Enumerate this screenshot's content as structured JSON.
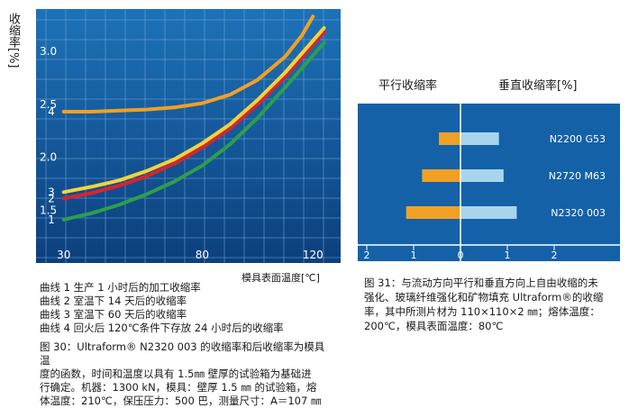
{
  "chart_data": [
    {
      "type": "line",
      "ylabel": "收缩率[%]",
      "xlabel": "模具表面温度[℃]",
      "x_ticks": [
        "30",
        "80",
        "120"
      ],
      "y_ticks": [
        "1.5",
        "2.0",
        "2.5",
        "3.0"
      ],
      "xlim": [
        20,
        130
      ],
      "ylim": [
        1.0,
        3.4
      ],
      "grid": true,
      "series": [
        {
          "name": "1",
          "color": "#2e9e4a",
          "x": [
            30,
            40,
            50,
            60,
            70,
            80,
            90,
            100,
            110,
            120,
            124
          ],
          "y": [
            1.41,
            1.47,
            1.55,
            1.65,
            1.77,
            1.92,
            2.12,
            2.37,
            2.66,
            2.96,
            3.08
          ]
        },
        {
          "name": "2",
          "color": "#d8242e",
          "x": [
            30,
            40,
            50,
            60,
            70,
            80,
            90,
            100,
            110,
            120,
            124
          ],
          "y": [
            1.61,
            1.66,
            1.73,
            1.82,
            1.94,
            2.09,
            2.27,
            2.5,
            2.76,
            3.06,
            3.18
          ]
        },
        {
          "name": "3",
          "color": "#f1d33c",
          "x": [
            30,
            40,
            50,
            60,
            70,
            80,
            90,
            100,
            110,
            120,
            124
          ],
          "y": [
            1.67,
            1.72,
            1.78,
            1.87,
            1.98,
            2.13,
            2.31,
            2.54,
            2.8,
            3.1,
            3.22
          ]
        },
        {
          "name": "4",
          "color": "#f0a024",
          "x": [
            30,
            40,
            50,
            60,
            70,
            80,
            90,
            100,
            110,
            116,
            120
          ],
          "y": [
            2.43,
            2.43,
            2.44,
            2.45,
            2.47,
            2.51,
            2.59,
            2.73,
            2.95,
            3.15,
            3.33
          ]
        }
      ]
    },
    {
      "type": "bar",
      "orientation": "horizontal",
      "left_header": "平行收缩率",
      "right_header": "垂直收缩率[%]",
      "x_ticks": [
        "2",
        "1",
        "0",
        "1",
        "2"
      ],
      "categories": [
        "N2200 G53",
        "N2720 M63",
        "N2320 003"
      ],
      "series": [
        {
          "name": "平行收缩率",
          "color": "#f0a024",
          "values": [
            0.46,
            0.82,
            1.16
          ]
        },
        {
          "name": "垂直收缩率",
          "color": "#a9d5ec",
          "values": [
            0.82,
            0.92,
            1.2
          ]
        }
      ]
    }
  ],
  "legend_lines": [
    "曲线 1 生产 1 小时后的加工收缩率",
    "曲线 2 室温下 14 天后的收缩率",
    "曲线 3 室温下 60 天后的收缩率",
    "曲线 4 回火后 120℃条件下存放 24 小时后的收缩率"
  ],
  "caption_left": [
    "图 30：Ultraform® N2320 003 的收缩率和后收缩率为模具温",
    "度的函数，时间和温度以具有 1.5㎜ 壁厚的试验箱为基础进",
    "行确定。机器：1300 kN，模具：壁厚 1.5 ㎜ 的试验箱，熔",
    "体温度：210℃，保压压力：500 巴，测量尺寸：A＝107 ㎜"
  ],
  "caption_right": [
    "图 31：与流动方向平行和垂直方向上自由收缩的未",
    "强化、玻璃纤维强化和矿物填充 Ultraform®的收缩",
    "率，其中所测片材为 110×110×2 ㎜；熔体温度：",
    "200℃，模具表面温度：80℃"
  ]
}
